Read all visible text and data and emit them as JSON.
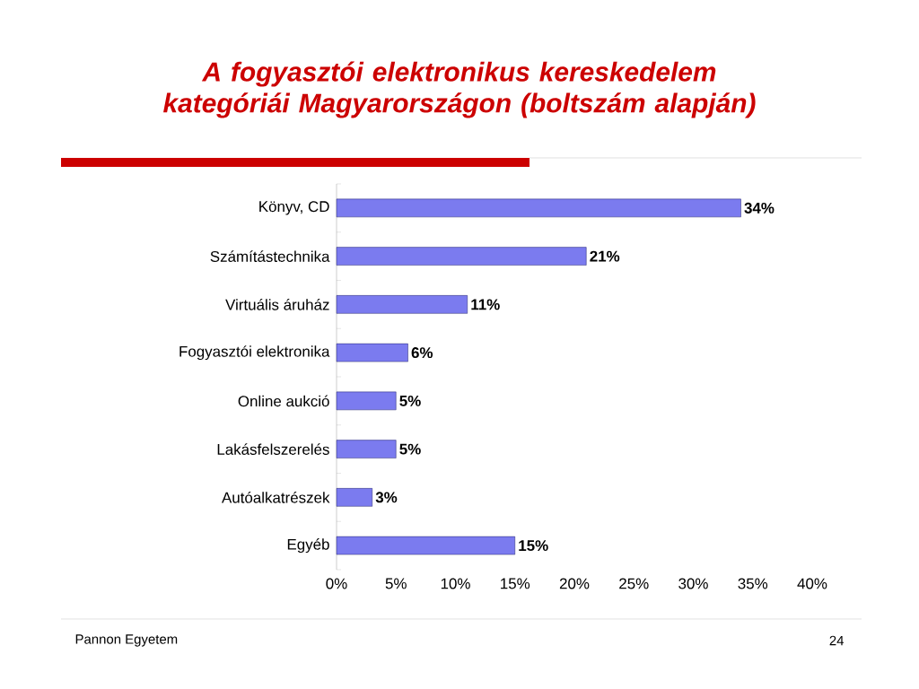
{
  "chart_data": {
    "type": "bar",
    "orientation": "horizontal",
    "title": "A fogyasztói elektronikus kereskedelem kategóriái Magyarországon (boltszám alapján)",
    "categories": [
      "Könyv, CD",
      "Számítástechnika",
      "Virtuális áruház",
      "Fogyasztói elektronika",
      "Online aukció",
      "Lakásfelszerelés",
      "Autóalkatrészek",
      "Egyéb"
    ],
    "values": [
      34,
      21,
      11,
      6,
      5,
      5,
      3,
      15
    ],
    "value_labels": [
      "34%",
      "21%",
      "11%",
      "6%",
      "5%",
      "5%",
      "3%",
      "15%"
    ],
    "color": "#7b7bef",
    "xlim": [
      0,
      40
    ],
    "xticks": [
      {
        "value": 0,
        "label": "0%"
      },
      {
        "value": 5,
        "label": "5%"
      },
      {
        "value": 10,
        "label": "10%"
      },
      {
        "value": 15,
        "label": "15%"
      },
      {
        "value": 20,
        "label": "20%"
      },
      {
        "value": 25,
        "label": "25%"
      },
      {
        "value": 30,
        "label": "30%"
      },
      {
        "value": 35,
        "label": "35%"
      },
      {
        "value": 40,
        "label": "40%"
      }
    ],
    "annotations": [
      "Pannon Egyetem",
      "24"
    ]
  }
}
